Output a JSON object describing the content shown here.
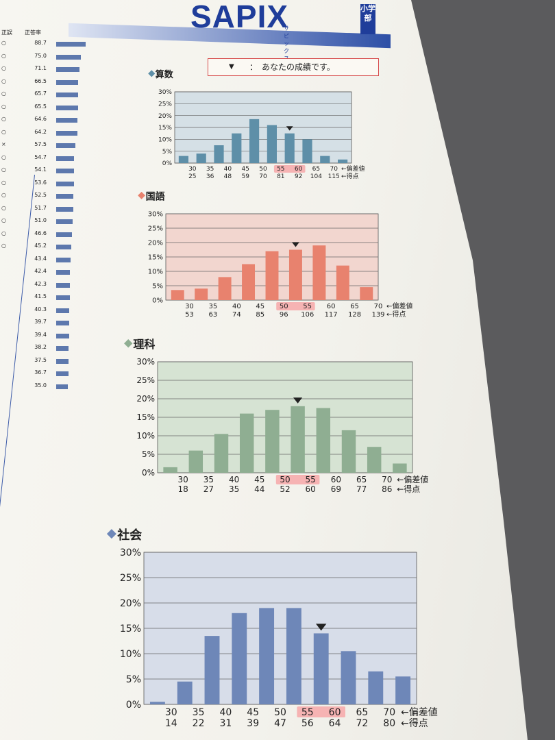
{
  "header": {
    "logo_text": "SAPIX",
    "logo_kana": "サピックス",
    "logo_dept": "小学部",
    "legend_marker": "▼",
    "legend_text": "：　あなたの成績です。"
  },
  "left_table": {
    "headers": [
      "正誤",
      "正答率"
    ],
    "rows": [
      {
        "mark": "○",
        "rate": "88.7",
        "bar": 0.89
      },
      {
        "mark": "○",
        "rate": "75.0",
        "bar": 0.75
      },
      {
        "mark": "○",
        "rate": "71.1",
        "bar": 0.71
      },
      {
        "mark": "○",
        "rate": "66.5",
        "bar": 0.67
      },
      {
        "mark": "○",
        "rate": "65.7",
        "bar": 0.66
      },
      {
        "mark": "○",
        "rate": "65.5",
        "bar": 0.66
      },
      {
        "mark": "○",
        "rate": "64.6",
        "bar": 0.65
      },
      {
        "mark": "○",
        "rate": "64.2",
        "bar": 0.64
      },
      {
        "mark": "×",
        "rate": "57.5",
        "bar": 0.58
      },
      {
        "mark": "○",
        "rate": "54.7",
        "bar": 0.55
      },
      {
        "mark": "○",
        "rate": "54.1",
        "bar": 0.54
      },
      {
        "mark": "○",
        "rate": "53.6",
        "bar": 0.54
      },
      {
        "mark": "○",
        "rate": "52.5",
        "bar": 0.53
      },
      {
        "mark": "○",
        "rate": "51.7",
        "bar": 0.52
      },
      {
        "mark": "○",
        "rate": "51.0",
        "bar": 0.51
      },
      {
        "mark": "○",
        "rate": "46.6",
        "bar": 0.47
      },
      {
        "mark": "○",
        "rate": "45.2",
        "bar": 0.45
      },
      {
        "mark": "",
        "rate": "43.4",
        "bar": 0.43
      },
      {
        "mark": "",
        "rate": "42.4",
        "bar": 0.42
      },
      {
        "mark": "",
        "rate": "42.3",
        "bar": 0.42
      },
      {
        "mark": "",
        "rate": "41.5",
        "bar": 0.42
      },
      {
        "mark": "",
        "rate": "40.3",
        "bar": 0.4
      },
      {
        "mark": "",
        "rate": "39.7",
        "bar": 0.4
      },
      {
        "mark": "",
        "rate": "39.4",
        "bar": 0.39
      },
      {
        "mark": "",
        "rate": "38.2",
        "bar": 0.38
      },
      {
        "mark": "",
        "rate": "37.5",
        "bar": 0.38
      },
      {
        "mark": "",
        "rate": "36.7",
        "bar": 0.37
      },
      {
        "mark": "",
        "rate": "35.0",
        "bar": 0.35
      }
    ]
  },
  "chart_data": [
    {
      "type": "bar",
      "title": "算数",
      "accent": "#5e8fa8",
      "bg": "#d5e0e6",
      "yticks": [
        "0%",
        "5%",
        "10%",
        "15%",
        "20%",
        "25%",
        "30%"
      ],
      "ylim": [
        0,
        30
      ],
      "deviation": [
        "30",
        "35",
        "40",
        "45",
        "50",
        "55",
        "60",
        "65",
        "70"
      ],
      "score": [
        "25",
        "36",
        "48",
        "59",
        "70",
        "81",
        "92",
        "104",
        "115"
      ],
      "axis_labels": [
        "←偏差値",
        "←得点"
      ],
      "values": [
        3,
        4,
        7.5,
        12.5,
        18.5,
        16,
        12.5,
        10,
        3,
        1.5
      ],
      "marker_index": 6,
      "highlight": [
        5,
        6
      ]
    },
    {
      "type": "bar",
      "title": "国語",
      "accent": "#e8826e",
      "bg": "#f2d6cf",
      "yticks": [
        "0%",
        "5%",
        "10%",
        "15%",
        "20%",
        "25%",
        "30%"
      ],
      "ylim": [
        0,
        30
      ],
      "deviation": [
        "30",
        "35",
        "40",
        "45",
        "50",
        "55",
        "60",
        "65",
        "70"
      ],
      "score": [
        "53",
        "63",
        "74",
        "85",
        "96",
        "106",
        "117",
        "128",
        "139"
      ],
      "axis_labels": [
        "←偏差値",
        "←得点"
      ],
      "values": [
        3.5,
        4,
        8,
        12.5,
        17,
        17.5,
        19,
        12,
        4.5
      ],
      "marker_index": 5,
      "highlight": [
        4,
        5
      ]
    },
    {
      "type": "bar",
      "title": "理科",
      "accent": "#8fae92",
      "bg": "#d6e3d3",
      "yticks": [
        "0%",
        "5%",
        "10%",
        "15%",
        "20%",
        "25%",
        "30%"
      ],
      "ylim": [
        0,
        30
      ],
      "deviation": [
        "30",
        "35",
        "40",
        "45",
        "50",
        "55",
        "60",
        "65",
        "70"
      ],
      "score": [
        "18",
        "27",
        "35",
        "44",
        "52",
        "60",
        "69",
        "77",
        "86"
      ],
      "axis_labels": [
        "←偏差値",
        "←得点"
      ],
      "values": [
        1.5,
        6,
        10.5,
        16,
        17,
        18,
        17.5,
        11.5,
        7,
        2.5
      ],
      "marker_index": 5,
      "highlight": [
        4,
        5
      ]
    },
    {
      "type": "bar",
      "title": "社会",
      "accent": "#6e87b8",
      "bg": "#d7dde9",
      "yticks": [
        "0%",
        "5%",
        "10%",
        "15%",
        "20%",
        "25%",
        "30%"
      ],
      "ylim": [
        0,
        30
      ],
      "deviation": [
        "30",
        "35",
        "40",
        "45",
        "50",
        "55",
        "60",
        "65",
        "70"
      ],
      "score": [
        "14",
        "22",
        "31",
        "39",
        "47",
        "56",
        "64",
        "72",
        "80"
      ],
      "axis_labels": [
        "←偏差値",
        "←得点"
      ],
      "values": [
        0.5,
        4.5,
        13.5,
        18,
        19,
        19,
        14,
        10.5,
        6.5,
        5.5
      ],
      "marker_index": 6,
      "highlight": [
        5,
        6
      ]
    }
  ]
}
